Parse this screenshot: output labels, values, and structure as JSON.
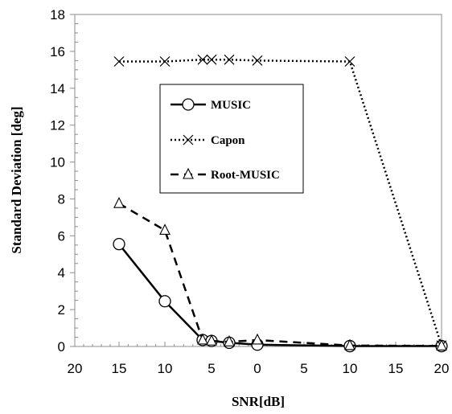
{
  "chart_data": {
    "type": "line",
    "xlabel": "SNR[dB]",
    "ylabel": "Standard  Deviation [deg]",
    "x_tick_labels": [
      "20",
      "15",
      "10",
      "5",
      "0",
      "5",
      "10",
      "15",
      "20"
    ],
    "x_positions_note_free": true,
    "y_ticks": [
      "0",
      "2",
      "4",
      "6",
      "8",
      "10",
      "12",
      "14",
      "16",
      "18"
    ],
    "ylim": [
      0,
      18
    ],
    "grid": false,
    "legend_placement": "upper-center",
    "series": [
      {
        "name": "MUSIC",
        "line_style": "solid",
        "marker": "circle",
        "color": "#000000",
        "points": [
          [
            15,
            5.55
          ],
          [
            10,
            2.45
          ],
          [
            6,
            0.35
          ],
          [
            5,
            0.3
          ],
          [
            3,
            0.2
          ],
          [
            0,
            0.1
          ],
          [
            10,
            0.02
          ],
          [
            20,
            0.02
          ]
        ]
      },
      {
        "name": "Capon",
        "line_style": "dotted",
        "marker": "x",
        "color": "#000000",
        "points": [
          [
            15,
            15.45
          ],
          [
            10,
            15.45
          ],
          [
            6,
            15.55
          ],
          [
            5,
            15.55
          ],
          [
            3,
            15.55
          ],
          [
            0,
            15.5
          ],
          [
            10,
            15.45
          ],
          [
            20,
            0.05
          ]
        ]
      },
      {
        "name": "Root-MUSIC",
        "line_style": "dashed",
        "marker": "triangle",
        "color": "#000000",
        "points": [
          [
            15,
            7.75
          ],
          [
            10,
            6.3
          ],
          [
            6,
            0.35
          ],
          [
            5,
            0.3
          ],
          [
            3,
            0.25
          ],
          [
            0,
            0.35
          ],
          [
            10,
            0.05
          ],
          [
            20,
            0.03
          ]
        ]
      }
    ]
  }
}
